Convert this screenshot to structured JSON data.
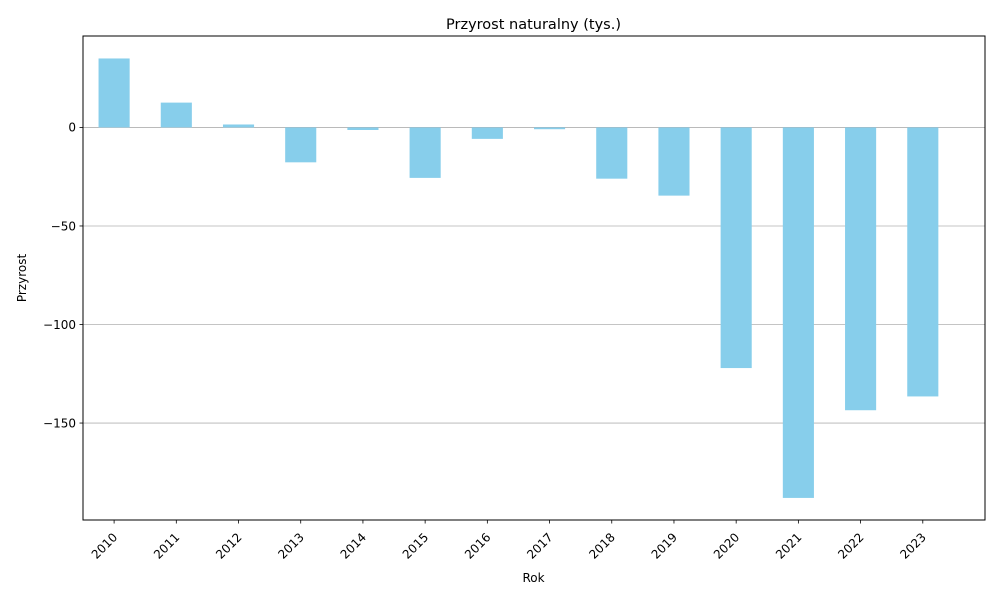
{
  "chart_data": {
    "type": "bar",
    "title": "Przyrost naturalny (tys.)",
    "xlabel": "Rok",
    "ylabel": "Przyrost",
    "categories": [
      "2010",
      "2011",
      "2012",
      "2013",
      "2014",
      "2015",
      "2016",
      "2017",
      "2018",
      "2019",
      "2020",
      "2021",
      "2022",
      "2023"
    ],
    "values": [
      35.0,
      12.6,
      1.5,
      -17.7,
      -1.3,
      -25.6,
      -5.8,
      -0.9,
      -26.0,
      -34.6,
      -122.1,
      -188.0,
      -143.5,
      -136.5
    ],
    "ylim": [
      -199.2,
      46.4
    ],
    "yticks": [
      0,
      -50,
      -100,
      -150
    ],
    "ytick_labels": [
      "0",
      "−50",
      "−100",
      "−150"
    ],
    "grid": {
      "axis": "y",
      "visible": true
    },
    "bar_color": "#87CEEB",
    "grid_color": "#b0b0b0",
    "legend": "none"
  }
}
